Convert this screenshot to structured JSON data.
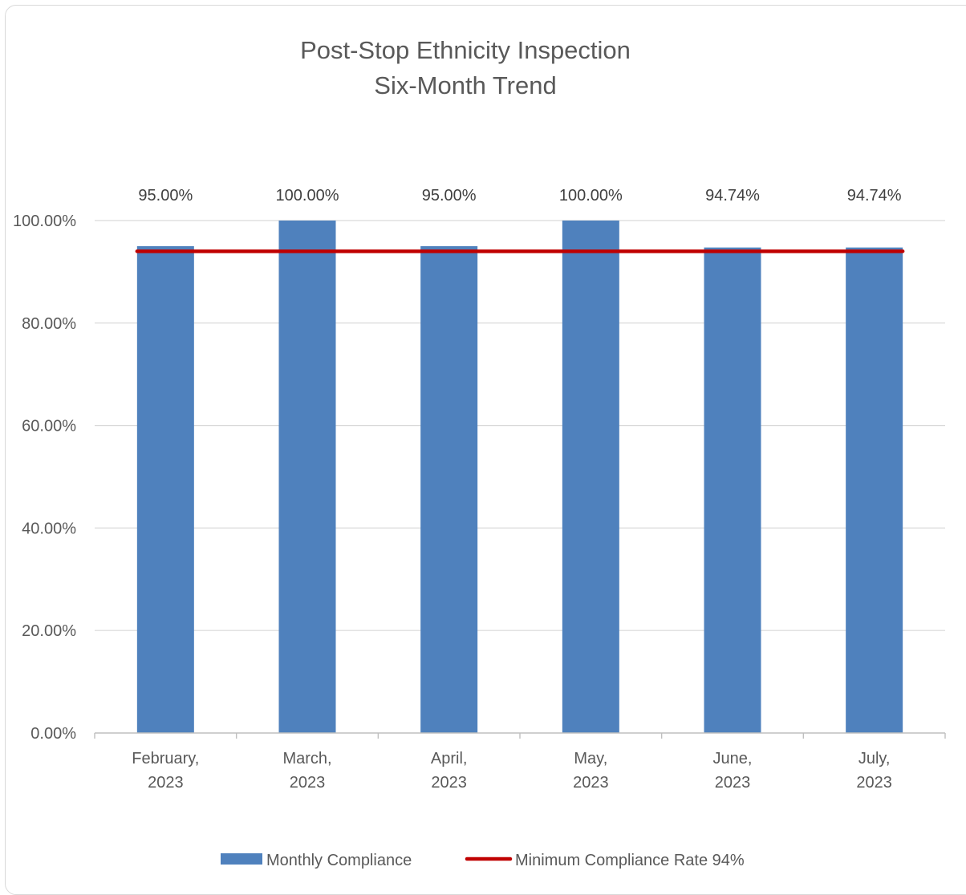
{
  "chart_data": {
    "type": "bar",
    "title": [
      "Post-Stop Ethnicity Inspection",
      "Six-Month Trend"
    ],
    "categories": [
      [
        "February,",
        "2023"
      ],
      [
        "March,",
        "2023"
      ],
      [
        "April,",
        "2023"
      ],
      [
        "May,",
        "2023"
      ],
      [
        "June,",
        "2023"
      ],
      [
        "July,",
        "2023"
      ]
    ],
    "series": [
      {
        "name": "Monthly Compliance",
        "type": "bar",
        "color": "#4f81bd",
        "values": [
          95.0,
          100.0,
          95.0,
          100.0,
          94.74,
          94.74
        ],
        "data_labels": [
          "95.00%",
          "100.00%",
          "95.00%",
          "100.00%",
          "94.74%",
          "94.74%"
        ]
      },
      {
        "name": "Minimum Compliance Rate 94%",
        "type": "line",
        "color": "#c00000",
        "values": [
          94,
          94,
          94,
          94,
          94,
          94
        ]
      }
    ],
    "ylim": [
      0,
      100
    ],
    "yticks": [
      0,
      20,
      40,
      60,
      80,
      100
    ],
    "ytick_labels": [
      "0.00%",
      "20.00%",
      "40.00%",
      "60.00%",
      "80.00%",
      "100.00%"
    ],
    "grid": true,
    "legend": "bottom"
  }
}
